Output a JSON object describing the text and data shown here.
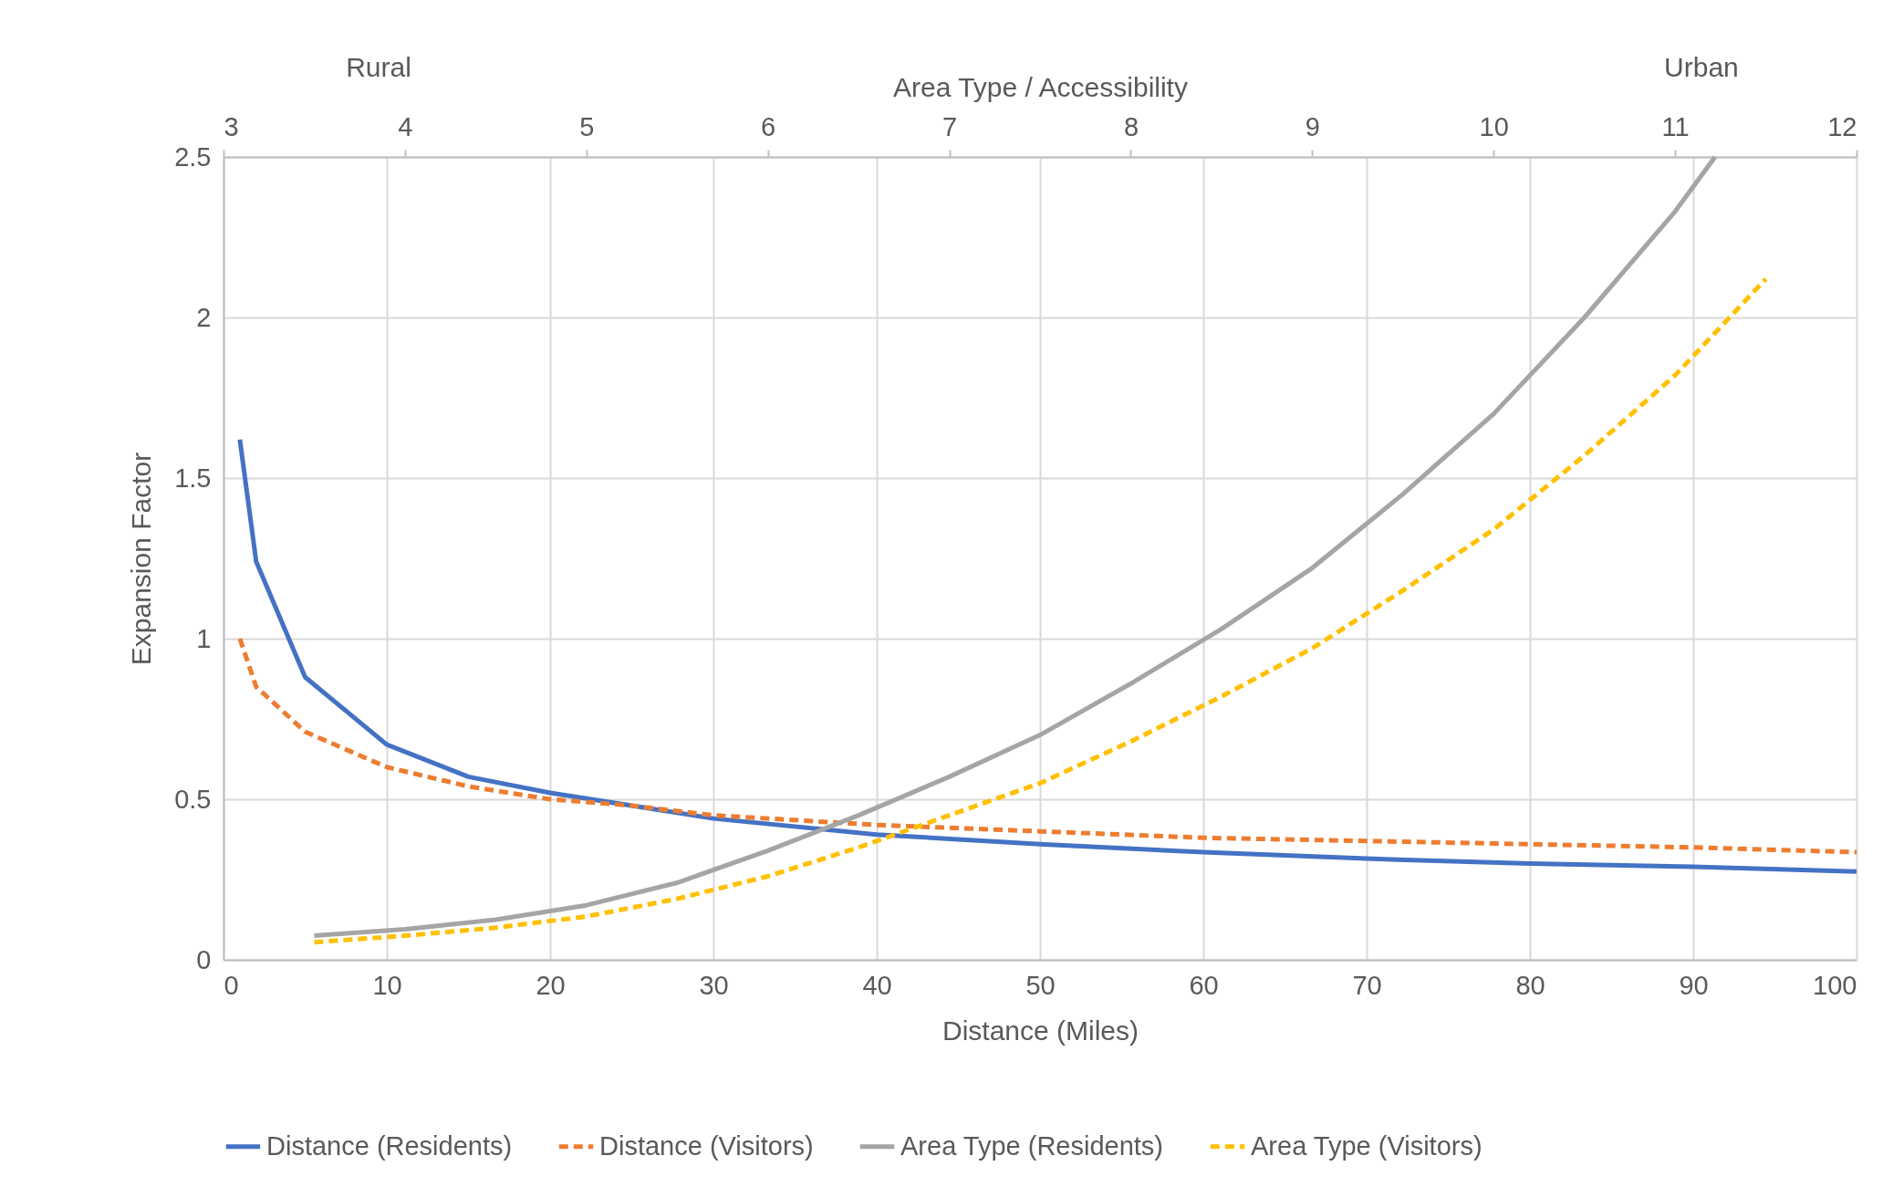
{
  "chart_data": {
    "type": "line",
    "xlabel": "Distance (Miles)",
    "ylabel": "Expansion Factor",
    "x2label": "Area Type / Accessibility",
    "annotations": [
      "Rural",
      "Urban"
    ],
    "xlim": [
      0,
      100
    ],
    "xticks": [
      0,
      10,
      20,
      30,
      40,
      50,
      60,
      70,
      80,
      90,
      100
    ],
    "x2lim": [
      3,
      12
    ],
    "x2ticks": [
      3,
      4,
      5,
      6,
      7,
      8,
      9,
      10,
      11,
      12
    ],
    "ylim": [
      0,
      2.5
    ],
    "yticks": [
      0,
      0.5,
      1,
      1.5,
      2,
      2.5
    ],
    "grid": true,
    "legend": "bottom",
    "marker": "none",
    "series": [
      {
        "name": "Distance (Residents)",
        "color": "#4472c4",
        "line_style": "solid",
        "x": [
          1,
          2,
          5,
          10,
          15,
          20,
          25,
          30,
          40,
          50,
          60,
          70,
          80,
          90,
          100
        ],
        "values": [
          1.62,
          1.24,
          0.88,
          0.67,
          0.57,
          0.52,
          0.48,
          0.44,
          0.39,
          0.36,
          0.335,
          0.315,
          0.3,
          0.29,
          0.275
        ]
      },
      {
        "name": "Distance (Visitors)",
        "color": "#ed7d31",
        "line_style": "dashed",
        "x": [
          1,
          2,
          5,
          10,
          15,
          20,
          25,
          30,
          40,
          50,
          60,
          70,
          80,
          90,
          100
        ],
        "values": [
          1.0,
          0.85,
          0.71,
          0.6,
          0.54,
          0.5,
          0.48,
          0.45,
          0.42,
          0.4,
          0.38,
          0.37,
          0.36,
          0.35,
          0.335
        ]
      },
      {
        "name": "Area Type (Residents)",
        "color": "#a5a5a5",
        "line_style": "solid",
        "axis": "x2",
        "x": [
          3.5,
          4,
          4.5,
          5,
          5.5,
          6,
          6.5,
          7,
          7.5,
          8,
          8.5,
          9,
          9.5,
          10,
          10.5,
          11,
          11.22
        ],
        "values": [
          0.075,
          0.095,
          0.125,
          0.17,
          0.24,
          0.34,
          0.45,
          0.57,
          0.7,
          0.86,
          1.03,
          1.22,
          1.45,
          1.7,
          2.0,
          2.33,
          2.5
        ]
      },
      {
        "name": "Area Type (Visitors)",
        "color": "#ffc000",
        "line_style": "dashed",
        "axis": "x2",
        "x": [
          3.5,
          4,
          4.5,
          5,
          5.5,
          6,
          6.5,
          7,
          7.5,
          8,
          8.5,
          9,
          9.5,
          10,
          10.5,
          11,
          11.5
        ],
        "values": [
          0.055,
          0.075,
          0.1,
          0.135,
          0.19,
          0.26,
          0.35,
          0.45,
          0.55,
          0.68,
          0.82,
          0.97,
          1.15,
          1.34,
          1.57,
          1.82,
          2.12
        ]
      }
    ]
  }
}
